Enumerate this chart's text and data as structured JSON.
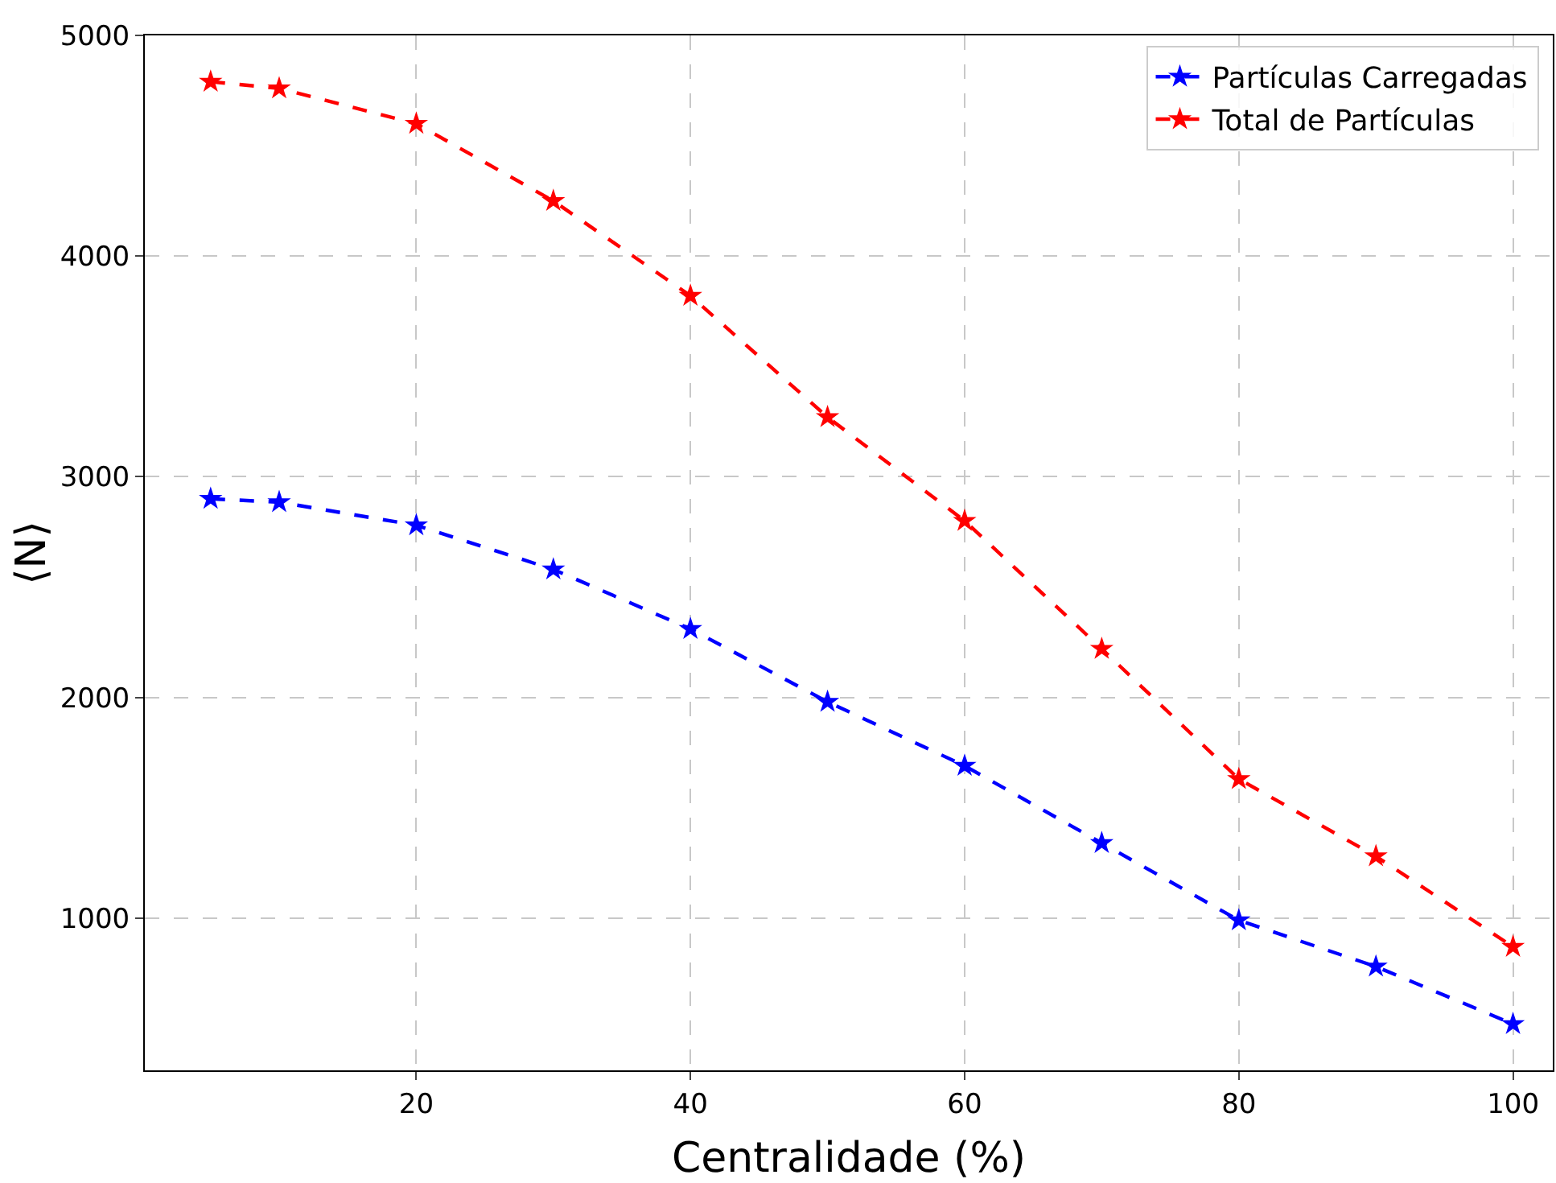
{
  "chart_data": {
    "type": "line",
    "xlabel": "Centralidade (%)",
    "ylabel": "⟨N⟩",
    "x": [
      5,
      10,
      20,
      30,
      40,
      50,
      60,
      70,
      80,
      90,
      100
    ],
    "series": [
      {
        "name": "Partículas Carregadas",
        "color": "#0000ff",
        "values": [
          2900,
          2885,
          2780,
          2580,
          2310,
          1980,
          1690,
          1340,
          990,
          780,
          520
        ]
      },
      {
        "name": "Total de Partículas",
        "color": "#ff0000",
        "values": [
          4790,
          4760,
          4600,
          4250,
          3820,
          3270,
          2800,
          2220,
          1630,
          1280,
          870
        ]
      }
    ],
    "xlim": [
      0.2,
      102.9
    ],
    "xticks": [
      20,
      40,
      60,
      80,
      100
    ],
    "ylim": [
      310,
      5000
    ],
    "yticks": [
      1000,
      2000,
      3000,
      4000,
      5000
    ],
    "grid": true,
    "legend": "top right",
    "marker": "star",
    "line_style": "dashed"
  }
}
